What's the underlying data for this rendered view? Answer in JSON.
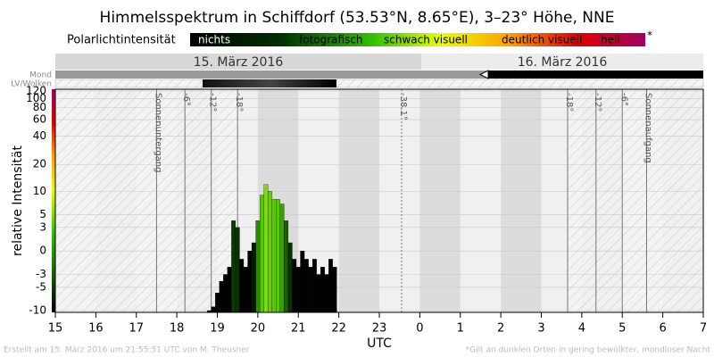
{
  "header": {
    "title": "Himmelsspektrum in Schiffdorf (53.53°N, 8.65°E), 3–23° Höhe, NNE",
    "legend_label": "Polarlichtintensität",
    "legend_items": [
      "nichts",
      "fotografisch",
      "schwach visuell",
      "deutlich visuell",
      "hell"
    ],
    "legend_note": "*",
    "dates": [
      "15. März 2016",
      "16. März 2016"
    ],
    "rows": [
      "Mond",
      "LV/Wolken"
    ]
  },
  "chart_data": {
    "type": "bar",
    "y_label": "relative Intensität",
    "x_label": "UTC",
    "x": [
      18.8,
      18.9,
      19.0,
      19.1,
      19.2,
      19.3,
      19.4,
      19.5,
      19.6,
      19.7,
      19.8,
      19.9,
      20.0,
      20.1,
      20.2,
      20.3,
      20.4,
      20.5,
      20.6,
      20.7,
      20.8,
      20.9,
      21.0,
      21.1,
      21.2,
      21.3,
      21.4,
      21.5,
      21.6,
      21.7,
      21.8,
      21.9
    ],
    "values": [
      -10,
      -9,
      -6,
      -4,
      -3,
      -2,
      4,
      3,
      -1,
      -2,
      0,
      1,
      4,
      9,
      12,
      10,
      8,
      8,
      7,
      4,
      1,
      -1,
      -2,
      0,
      -1,
      -2,
      -1,
      -3,
      -2,
      -3,
      -1,
      -2
    ],
    "colors": [
      "#000000",
      "#000000",
      "#000000",
      "#000000",
      "#000000",
      "#000000",
      "#0a3a00",
      "#0a3000",
      "#000000",
      "#000000",
      "#000000",
      "#051800",
      "#2a8a00",
      "#5ac800",
      "#7adc10",
      "#6ad000",
      "#5ac800",
      "#5ac800",
      "#3aa000",
      "#1a6000",
      "#0a3000",
      "#000000",
      "#000000",
      "#000000",
      "#000000",
      "#000000",
      "#000000",
      "#000000",
      "#000000",
      "#000000",
      "#000000",
      "#000000"
    ],
    "xlim": [
      15,
      31
    ],
    "xticks": [
      15,
      16,
      17,
      18,
      19,
      20,
      21,
      22,
      23,
      {
        "value": 24,
        "label": "0"
      },
      {
        "value": 25,
        "label": "1"
      },
      {
        "value": 26,
        "label": "2"
      },
      {
        "value": 27,
        "label": "3"
      },
      {
        "value": 28,
        "label": "4"
      },
      {
        "value": 29,
        "label": "5"
      },
      {
        "value": 30,
        "label": "6"
      },
      {
        "value": 31,
        "label": "7"
      }
    ],
    "ylim": [
      -10,
      120
    ],
    "yticks": [
      -10,
      -5,
      -3,
      0,
      3,
      5,
      10,
      20,
      40,
      60,
      80,
      100,
      120
    ],
    "y_scale": "symlog",
    "grid": true,
    "annotations": [
      {
        "label": "Sonnenuntergang",
        "x": 17.5
      },
      {
        "label": "-6°",
        "x": 18.2
      },
      {
        "label": "-12°",
        "x": 18.85
      },
      {
        "label": "-18°",
        "x": 19.5
      },
      {
        "label": "-38.1°",
        "x": 23.55
      },
      {
        "label": "-18°",
        "x": 27.65
      },
      {
        "label": "-12°",
        "x": 28.35
      },
      {
        "label": "-6°",
        "x": 29.0
      },
      {
        "label": "Sonnenaufgang",
        "x": 29.6
      }
    ]
  },
  "footer": {
    "left": "Erstellt am 15. März 2016 um 21:55:51 UTC von M. Theusner",
    "right": "*Gilt an dunklen Orten in gering bewölkter, mondloser Nacht"
  }
}
